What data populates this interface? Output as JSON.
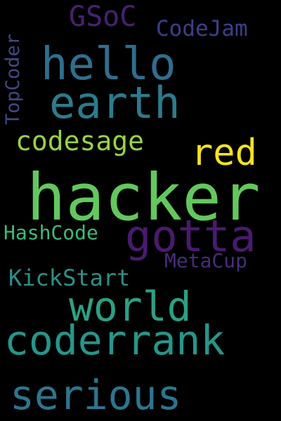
{
  "background_color": "#000000",
  "words": {
    "hacker": {
      "text": "hacker",
      "color": "#62C85E"
    },
    "hello": {
      "text": "hello",
      "color": "#2F6E8E"
    },
    "earth": {
      "text": "earth",
      "color": "#2B7B8E"
    },
    "gotta": {
      "text": "gotta",
      "color": "#4A1A6F"
    },
    "coderrank": {
      "text": "coderrank",
      "color": "#26968A"
    },
    "world": {
      "text": "world",
      "color": "#2BA084"
    },
    "serious": {
      "text": "serious",
      "color": "#2D758E"
    },
    "red": {
      "text": "red",
      "color": "#F3E21E"
    },
    "codesage": {
      "text": "codesage",
      "color": "#97D545"
    },
    "gsoc": {
      "text": "GSoC",
      "color": "#46226F"
    },
    "codejam": {
      "text": "CodeJam",
      "color": "#3B3F8A"
    },
    "hashcode": {
      "text": "HashCode",
      "color": "#3EBB77"
    },
    "kickstart": {
      "text": "KickStart",
      "color": "#2E8F8A"
    },
    "metacup": {
      "text": "MetaCup",
      "color": "#472D7B"
    },
    "topcoder": {
      "text": "TopCoder",
      "color": "#404785"
    }
  }
}
